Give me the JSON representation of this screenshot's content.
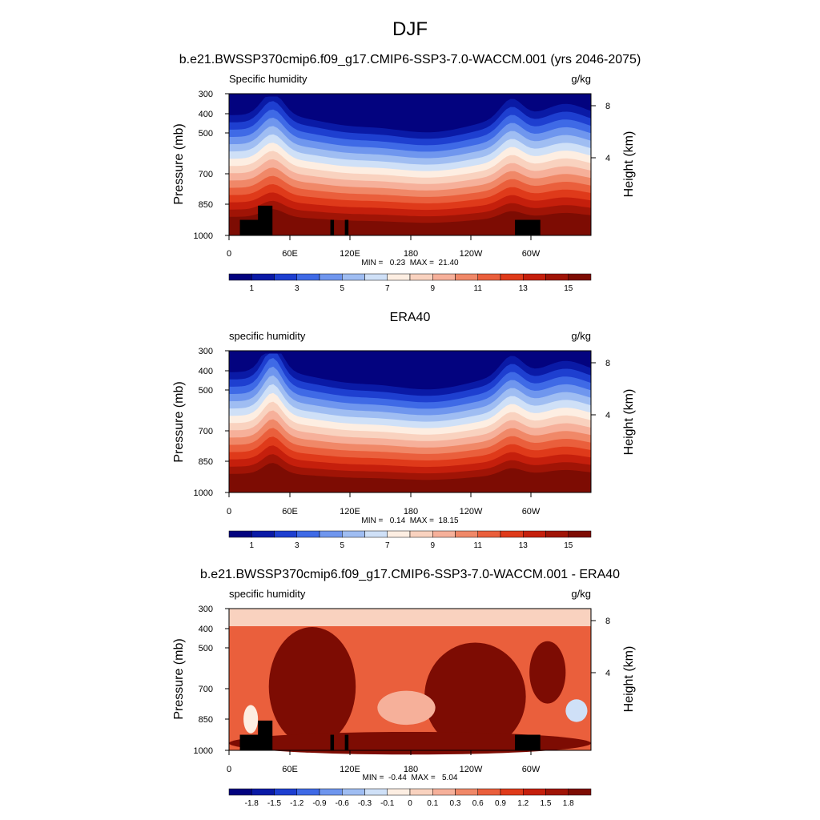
{
  "figure": {
    "season": "DJF",
    "main_title": "b.e21.BWSSP370cmip6.f09_g17.CMIP6-SSP3-7.0-WACCM.001 (yrs 2046-2075)"
  },
  "chart_data": [
    {
      "type": "heatmap",
      "title": "",
      "left_label": "Specific humidity",
      "right_label": "g/kg",
      "xlabel": "",
      "ylabel": "Pressure (mb)",
      "y2label": "Height (km)",
      "x_ticks": [
        "0",
        "60E",
        "120E",
        "180",
        "120W",
        "60W"
      ],
      "y_ticks": [
        "300",
        "400",
        "500",
        "700",
        "850",
        "1000"
      ],
      "y2_ticks": [
        "8",
        "4"
      ],
      "stats": "MIN =   0.23  MAX =  21.40",
      "colorbar_labels": [
        "1",
        "3",
        "5",
        "7",
        "9",
        "11",
        "13",
        "15"
      ],
      "colorbar_colors": [
        "#03037f",
        "#0a1aa6",
        "#1e3fd0",
        "#3f6ae6",
        "#6f96ee",
        "#9fbdf2",
        "#cfe0f7",
        "#fdeee2",
        "#f9d2bf",
        "#f6b09a",
        "#f08868",
        "#ea5f3c",
        "#df3a1a",
        "#c51f0c",
        "#a01406",
        "#7d0c03"
      ],
      "min": 0.23,
      "max": 21.4
    },
    {
      "type": "heatmap",
      "title": "ERA40",
      "left_label": "specific humidity",
      "right_label": "g/kg",
      "xlabel": "",
      "ylabel": "Pressure (mb)",
      "y2label": "Height (km)",
      "x_ticks": [
        "0",
        "60E",
        "120E",
        "180",
        "120W",
        "60W"
      ],
      "y_ticks": [
        "300",
        "400",
        "500",
        "700",
        "850",
        "1000"
      ],
      "y2_ticks": [
        "8",
        "4"
      ],
      "stats": "MIN =   0.14  MAX =  18.15",
      "colorbar_labels": [
        "1",
        "3",
        "5",
        "7",
        "9",
        "11",
        "13",
        "15"
      ],
      "colorbar_colors": [
        "#03037f",
        "#0a1aa6",
        "#1e3fd0",
        "#3f6ae6",
        "#6f96ee",
        "#9fbdf2",
        "#cfe0f7",
        "#fdeee2",
        "#f9d2bf",
        "#f6b09a",
        "#f08868",
        "#ea5f3c",
        "#df3a1a",
        "#c51f0c",
        "#a01406",
        "#7d0c03"
      ],
      "min": 0.14,
      "max": 18.15
    },
    {
      "type": "heatmap",
      "title": "b.e21.BWSSP370cmip6.f09_g17.CMIP6-SSP3-7.0-WACCM.001 - ERA40",
      "left_label": "specific humidity",
      "right_label": "g/kg",
      "xlabel": "",
      "ylabel": "Pressure (mb)",
      "y2label": "Height (km)",
      "x_ticks": [
        "0",
        "60E",
        "120E",
        "180",
        "120W",
        "60W"
      ],
      "y_ticks": [
        "300",
        "400",
        "500",
        "700",
        "850",
        "1000"
      ],
      "y2_ticks": [
        "8",
        "4"
      ],
      "stats": "MIN =  -0.44  MAX =   5.04",
      "colorbar_labels": [
        "-1.8",
        "-1.5",
        "-1.2",
        "-0.9",
        "-0.6",
        "-0.3",
        "-0.1",
        "0",
        "0.1",
        "0.3",
        "0.6",
        "0.9",
        "1.2",
        "1.5",
        "1.8"
      ],
      "colorbar_colors": [
        "#03037f",
        "#0a1aa6",
        "#1e3fd0",
        "#3f6ae6",
        "#6f96ee",
        "#9fbdf2",
        "#cfe0f7",
        "#fdeee2",
        "#f9d2bf",
        "#f6b09a",
        "#f08868",
        "#ea5f3c",
        "#df3a1a",
        "#c51f0c",
        "#a01406",
        "#7d0c03"
      ],
      "min": -0.44,
      "max": 5.04
    }
  ]
}
